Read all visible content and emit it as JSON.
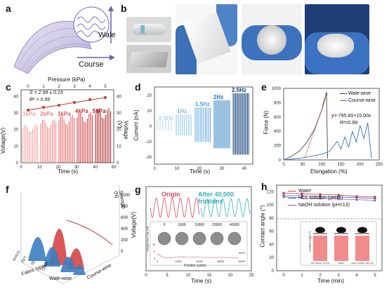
{
  "panel_labels": {
    "a": "a",
    "b": "b",
    "c": "c",
    "d": "d",
    "e": "e",
    "f": "f",
    "g": "g",
    "h": "h"
  },
  "panel_a": {
    "wale": "Wale",
    "course": "Course"
  },
  "panel_c": {
    "top_axis_label": "Pressure (kPa)",
    "top_ticks": [
      "0",
      "1",
      "2",
      "3",
      "4",
      "5"
    ],
    "s_eq": "S = 2.99 ± 0.15",
    "r2": "R² = 0.99",
    "left_ylabel": "Voltage(V)",
    "right_ylabel": "Voltage (V)",
    "xlabel": "Time (s)",
    "x_ticks": [
      "0",
      "10",
      "20",
      "30",
      "40",
      "50"
    ],
    "left_ticks": [
      "0",
      "10",
      "20",
      "30",
      "40"
    ],
    "right_ticks": [
      "0",
      "10",
      "20",
      "30",
      "40"
    ],
    "pressure_labels": [
      "1kPa",
      "2kPa",
      "3kPa",
      "4kPa",
      "5kPa"
    ],
    "pressure_colors": [
      "#f2a0a0",
      "#ea7d7d",
      "#e05a5a",
      "#c93333",
      "#a61d1d"
    ]
  },
  "panel_d": {
    "ylabel": "Current (nA)",
    "xlabel": "Time (s)",
    "x_ticks": [
      "0",
      "10",
      "20",
      "30",
      "40"
    ],
    "y_ticks": [
      "-20",
      "-10",
      "0",
      "10",
      "20"
    ],
    "freq_labels": [
      "0.5Hz",
      "1Hz",
      "1.5Hz",
      "2Hz",
      "2.5Hz"
    ],
    "freq_colors": [
      "#a9d3ee",
      "#7bbbe4",
      "#4d9ed8",
      "#2476c0",
      "#0e3f7a"
    ]
  },
  "panel_e": {
    "ylabel": "Force (N)",
    "xlabel": "Elongation (%)",
    "x_ticks": [
      "0",
      "50",
      "100",
      "150",
      "200",
      "250"
    ],
    "y_ticks": [
      "0",
      "200",
      "400",
      "600",
      "800",
      "1000"
    ],
    "legend": [
      "Wale-wise",
      "Course-wise"
    ],
    "fit_eq": "y=-795.60+15.00x",
    "fit_r2": "R²=0.99"
  },
  "panel_f": {
    "z_label": "Strength (N)",
    "z_ticks": [
      "0",
      "200",
      "400",
      "600",
      "800",
      "1000"
    ],
    "axis1_label": "Fabric type",
    "axis1_ticks": [
      "NV/CO",
      "PET",
      "SE",
      "CoRD"
    ],
    "axis2_label": "Course-wise",
    "axis3_label": "Wale-wise"
  },
  "panel_g": {
    "ylabel": "Voltage(V)",
    "xlabel": "Time (s)",
    "x_ticks": [
      "0",
      "5",
      "10",
      "15",
      "20",
      "25"
    ],
    "title_origin": "Origin",
    "title_after": "After 40,000 frictions",
    "inset_ylabel": "Weight loss rate (%)",
    "inset_xlabel": "Friction cycles",
    "inset_ticks": [
      "0",
      "10000",
      "20000",
      "30000",
      "40000"
    ],
    "inset_y_ticks": [
      "0",
      "5",
      "10"
    ],
    "inset_photo_labels": [
      "0",
      "1000",
      "10000",
      "25000",
      "40000"
    ],
    "inset_legend": "WTS"
  },
  "panel_h": {
    "ylabel": "Contact angle (°)",
    "xlabel": "Time (min)",
    "x_ticks": [
      "0",
      "1",
      "2",
      "3",
      "4",
      "5"
    ],
    "y_ticks": [
      "0",
      "20",
      "40",
      "60",
      "80",
      "100",
      "120"
    ],
    "legend": [
      "Water",
      "HCL solution (pH=1)",
      "NaOH solution (pH=13)"
    ],
    "legend_colors": [
      "#d23b3b",
      "#3a6fc0",
      "#9b59b6"
    ],
    "inset_ylabel": "Contact angle (°)",
    "inset_bars": [
      "HCl solution (pH=1)",
      "Water",
      "NaOH solution (pH=13)"
    ]
  },
  "chart_data": [
    {
      "type": "line",
      "panel": "e",
      "xlabel": "Elongation (%)",
      "ylabel": "Force (N)",
      "xlim": [
        0,
        250
      ],
      "ylim": [
        0,
        1000
      ],
      "series": [
        {
          "name": "Wale-wise",
          "x": [
            0,
            20,
            40,
            60,
            80,
            90,
            100,
            105,
            110,
            112,
            115
          ],
          "y": [
            0,
            50,
            120,
            240,
            420,
            560,
            700,
            820,
            900,
            950,
            20
          ]
        },
        {
          "name": "Course-wise",
          "x": [
            0,
            50,
            100,
            120,
            140,
            150,
            160,
            170,
            180,
            190,
            200,
            210,
            220,
            230
          ],
          "y": [
            0,
            30,
            80,
            120,
            260,
            150,
            320,
            180,
            400,
            250,
            480,
            300,
            520,
            20
          ]
        }
      ]
    },
    {
      "type": "line",
      "panel": "h",
      "xlabel": "Time (min)",
      "ylabel": "Contact angle (°)",
      "xlim": [
        0,
        5
      ],
      "ylim": [
        0,
        130
      ],
      "categories": [
        "0",
        "1",
        "2",
        "3",
        "4",
        "5"
      ],
      "series": [
        {
          "name": "Water",
          "values": [
            118,
            117,
            116,
            115,
            113,
            112
          ]
        },
        {
          "name": "HCL solution (pH=1)",
          "values": [
            114,
            114,
            113,
            112,
            111,
            110
          ]
        },
        {
          "name": "NaOH solution (pH=13)",
          "values": [
            112,
            111,
            110,
            109,
            108,
            107
          ]
        }
      ]
    }
  ]
}
